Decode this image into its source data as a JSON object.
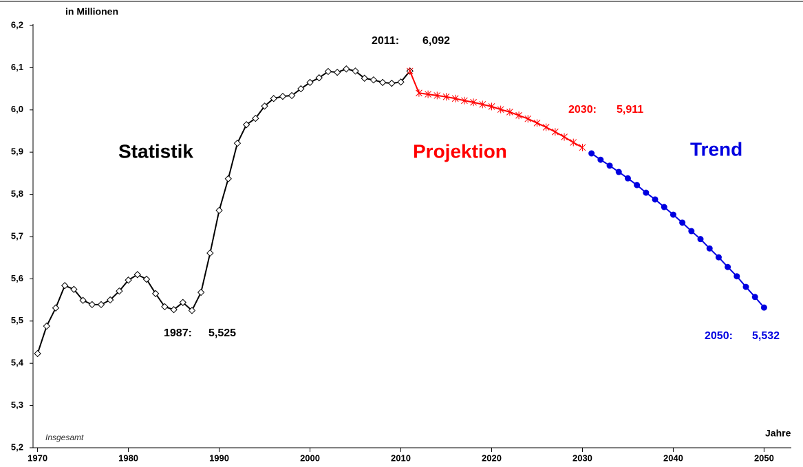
{
  "chart_data": {
    "type": "line",
    "y_label": "in Millionen",
    "x_label": "Jahre",
    "note": "Insgesamt",
    "xlim": [
      1969.5,
      2053
    ],
    "ylim": [
      5.2,
      6.2
    ],
    "xticks": [
      1970,
      1980,
      1990,
      2000,
      2010,
      2020,
      2030,
      2040,
      2050
    ],
    "yticks": [
      {
        "value": 5.2,
        "label": "5,2"
      },
      {
        "value": 5.3,
        "label": "5,3"
      },
      {
        "value": 5.4,
        "label": "5,4"
      },
      {
        "value": 5.5,
        "label": "5,5"
      },
      {
        "value": 5.6,
        "label": "5,6"
      },
      {
        "value": 5.7,
        "label": "5,7"
      },
      {
        "value": 5.8,
        "label": "5,8"
      },
      {
        "value": 5.9,
        "label": "5,9"
      },
      {
        "value": 6.0,
        "label": "6,0"
      },
      {
        "value": 6.1,
        "label": "6,1"
      },
      {
        "value": 6.2,
        "label": "6,2"
      }
    ],
    "series": [
      {
        "name": "Statistik",
        "color": "#000000",
        "marker": "diamond",
        "x": [
          1970,
          1971,
          1972,
          1973,
          1974,
          1975,
          1976,
          1977,
          1978,
          1979,
          1980,
          1981,
          1982,
          1983,
          1984,
          1985,
          1986,
          1987,
          1988,
          1989,
          1990,
          1991,
          1992,
          1993,
          1994,
          1995,
          1996,
          1997,
          1998,
          1999,
          2000,
          2001,
          2002,
          2003,
          2004,
          2005,
          2006,
          2007,
          2008,
          2009,
          2010,
          2011
        ],
        "values": [
          5.423,
          5.488,
          5.531,
          5.584,
          5.575,
          5.549,
          5.539,
          5.539,
          5.55,
          5.571,
          5.597,
          5.61,
          5.599,
          5.565,
          5.534,
          5.527,
          5.544,
          5.525,
          5.568,
          5.661,
          5.762,
          5.837,
          5.921,
          5.965,
          5.98,
          6.009,
          6.027,
          6.032,
          6.034,
          6.05,
          6.065,
          6.076,
          6.091,
          6.089,
          6.097,
          6.092,
          6.075,
          6.071,
          6.065,
          6.063,
          6.066,
          6.092
        ]
      },
      {
        "name": "Projektion",
        "color": "#ff0000",
        "marker": "star",
        "x": [
          2011,
          2012,
          2013,
          2014,
          2015,
          2016,
          2017,
          2018,
          2019,
          2020,
          2021,
          2022,
          2023,
          2024,
          2025,
          2026,
          2027,
          2028,
          2029,
          2030
        ],
        "values": [
          6.092,
          6.04,
          6.037,
          6.034,
          6.031,
          6.027,
          6.022,
          6.018,
          6.013,
          6.008,
          6.001,
          5.995,
          5.987,
          5.979,
          5.969,
          5.959,
          5.948,
          5.936,
          5.923,
          5.911
        ]
      },
      {
        "name": "Trend",
        "color": "#0000e0",
        "marker": "circle",
        "x": [
          2031,
          2032,
          2033,
          2034,
          2035,
          2036,
          2037,
          2038,
          2039,
          2040,
          2041,
          2042,
          2043,
          2044,
          2045,
          2046,
          2047,
          2048,
          2049,
          2050
        ],
        "values": [
          5.897,
          5.882,
          5.868,
          5.853,
          5.838,
          5.822,
          5.804,
          5.788,
          5.77,
          5.752,
          5.733,
          5.713,
          5.694,
          5.672,
          5.651,
          5.628,
          5.606,
          5.581,
          5.557,
          5.532
        ]
      }
    ],
    "annotations": [
      {
        "year": "2011:",
        "value": "6,092",
        "color": "#000000"
      },
      {
        "year": "1987:",
        "value": "5,525",
        "color": "#000000"
      },
      {
        "year": "2030:",
        "value": "5,911",
        "color": "#ff0000"
      },
      {
        "year": "2050:",
        "value": "5,532",
        "color": "#0000e0"
      }
    ]
  }
}
